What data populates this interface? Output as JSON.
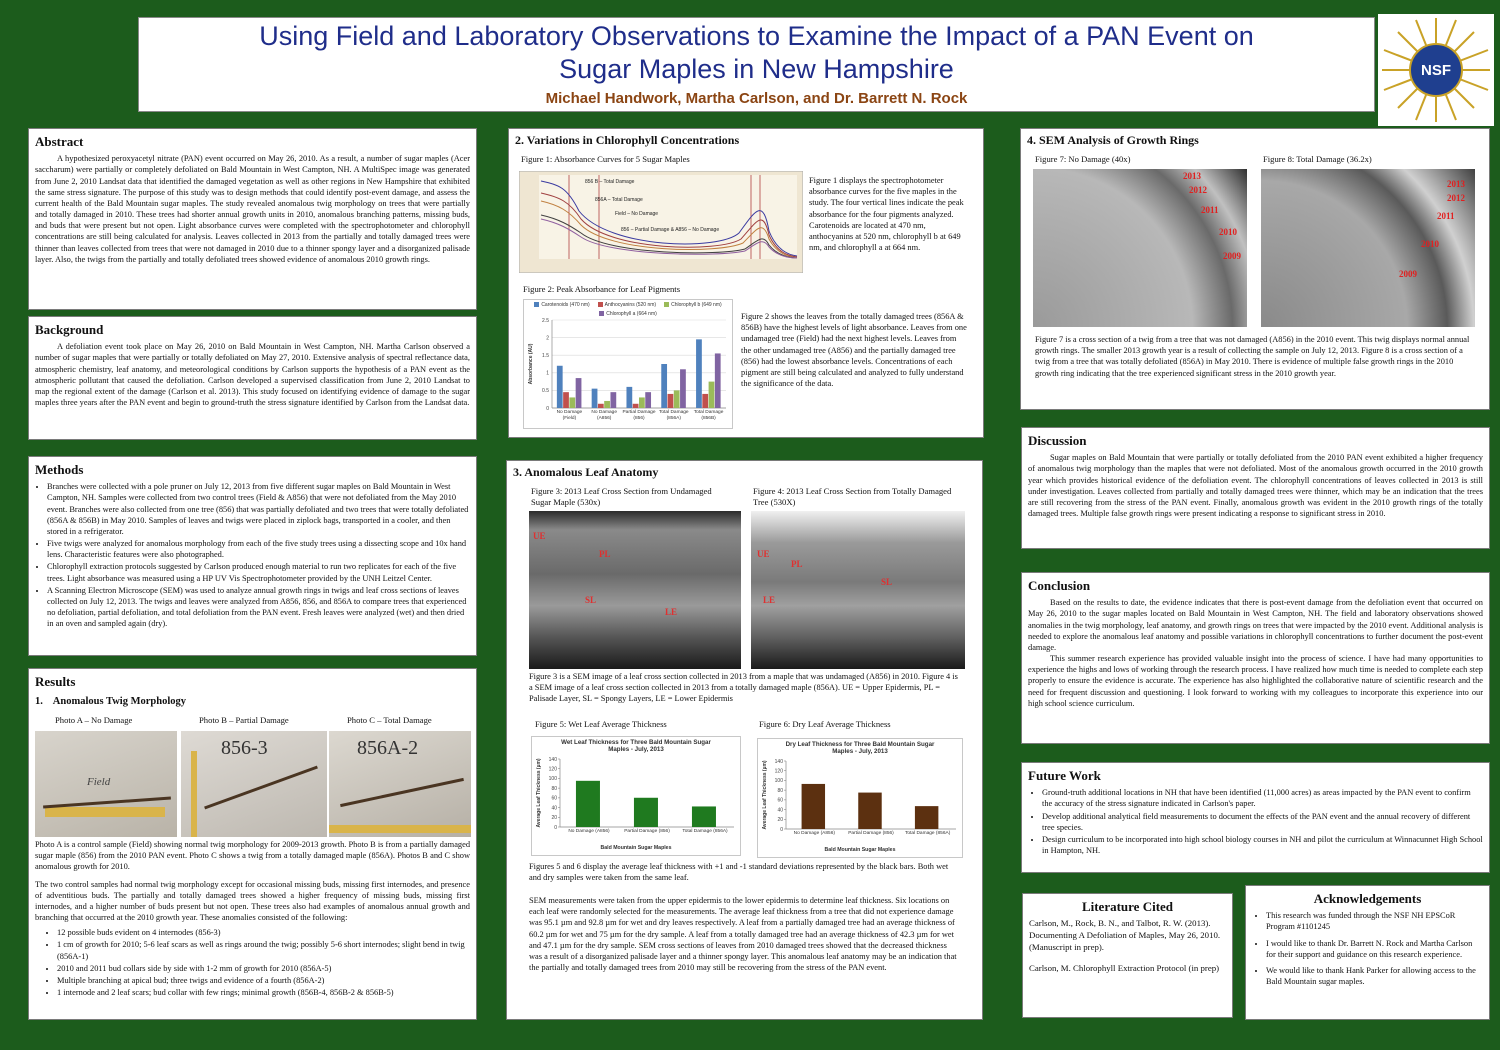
{
  "header": {
    "title": "Using Field and Laboratory Observations to Examine the Impact of a PAN Event on Sugar Maples in New Hampshire",
    "authors": "Michael Handwork, Martha Carlson, and Dr. Barrett N. Rock",
    "logo": "NSF"
  },
  "abstract": {
    "heading": "Abstract",
    "text": "A hypothesized peroxyacetyl nitrate (PAN) event occurred on May 26, 2010.  As a result, a number of sugar maples (Acer saccharum) were partially or completely defoliated on Bald Mountain in West Campton, NH.  A MultiSpec image was generated from June 2, 2010 Landsat data that identified the damaged vegetation as well as other regions in New Hampshire that exhibited the same stress signature.  The purpose of this study was to design methods that could identify post-event damage, and assess the current health of the Bald Mountain sugar maples.  The study revealed anomalous twig morphology on trees that were partially and totally damaged in 2010.  These trees had shorter annual growth units in 2010, anomalous branching patterns, missing buds, and buds that were present but not open.  Light absorbance curves were completed with the spectrophotometer and chlorophyll concentrations are still being calculated for analysis.  Leaves collected in 2013 from the partially and totally damaged trees were thinner than leaves collected from trees that were not damaged in 2010 due to a thinner spongy layer and a disorganized palisade layer.  Also, the twigs from the partially and totally defoliated trees showed evidence of anomalous 2010 growth rings."
  },
  "background": {
    "heading": "Background",
    "text": "A defoliation event took place on May 26, 2010 on Bald Mountain in West Campton, NH.  Martha Carlson observed a number of sugar maples that were partially or totally defoliated on May 27, 2010.  Extensive analysis of spectral reflectance data, atmospheric chemistry, leaf anatomy, and meteorological conditions by Carlson supports the hypothesis of a PAN event as the atmospheric pollutant that caused the defoliation.  Carlson developed a supervised classification from June 2, 2010 Landsat to map the regional extent of the damage (Carlson et al. 2013).  This study focused on identifying evidence of damage to the sugar maples three years after the PAN event and begin to ground-truth the stress signature identified by Carlson from the Landsat data."
  },
  "methods": {
    "heading": "Methods",
    "items": [
      "Branches were collected with a pole pruner on July 12, 2013 from five different sugar maples on Bald Mountain in West Campton, NH.  Samples were collected from two control trees (Field & A856) that were not defoliated from the May 2010 event.  Branches were also collected from one tree (856) that was partially defoliated and two trees that were totally defoliated (856A & 856B) in May 2010.  Samples of leaves and twigs were placed in ziplock bags, transported in a cooler, and then stored in a refrigerator.",
      "Five twigs were analyzed for anomalous morphology from each of the five study trees using a dissecting scope and 10x hand lens.  Characteristic features were also photographed.",
      "Chlorophyll extraction protocols suggested by Carlson produced enough material to run two replicates for each of the five trees.  Light absorbance was measured using a HP UV Vis Spectrophotometer provided by the UNH Leitzel Center.",
      "A Scanning Electron Microscope (SEM) was used to analyze annual growth rings in twigs and leaf cross sections of leaves collected on July 12, 2013.  The twigs and leaves were analyzed from A856, 856, and 856A to compare trees that experienced no defoliation, partial defoliation, and total defoliation from the PAN event.  Fresh leaves were analyzed (wet) and then dried in an oven and sampled again (dry)."
    ]
  },
  "results": {
    "heading": "Results",
    "subheading": "1.    Anomalous Twig Morphology",
    "photos": [
      {
        "caption": "Photo A – No Damage",
        "label": "Field"
      },
      {
        "caption": "Photo B – Partial Damage",
        "label": "856-3"
      },
      {
        "caption": "Photo C – Total Damage",
        "label": "856A-2"
      }
    ],
    "paragraph1": "Photo A is a control sample (Field) showing normal twig morphology for 2009-2013 growth.  Photo B is from a partially damaged sugar maple (856) from the 2010 PAN event.  Photo C shows a twig from a totally damaged maple (856A).  Photos B and C show anomalous growth for 2010.",
    "paragraph2": "The two control samples had normal twig morphology except for occasional missing buds, missing first internodes, and presence of adventitious buds.  The partially and totally damaged trees showed a higher frequency of missing buds, missing first internodes, and a higher number of buds present but not open.  These trees also had examples of anomalous annual growth and branching that occurred at the 2010 growth year.  These anomalies consisted of the following:",
    "items": [
      "12 possible buds evident on 4 internodes (856-3)",
      "1 cm of growth for 2010; 5-6 leaf scars as well as rings around the twig; possibly 5-6 short internodes; slight bend in twig (856A-1)",
      "2010 and 2011 bud collars side by side with 1-2 mm of growth for 2010 (856A-5)",
      "Multiple branching at apical bud; three twigs and evidence of a fourth (856A-2)",
      "1 internode and 2 leaf scars; bud collar with few rings; minimal growth (856B-4, 856B-2 & 856B-5)"
    ]
  },
  "variations": {
    "heading": "2. Variations in Chlorophyll Concentrations",
    "figure1": {
      "caption": "Figure 1: Absorbance Curves for 5 Sugar Maples",
      "curve_labels": [
        "856 B – Total Damage",
        "856A – Total Damage",
        "Field – No Damage",
        "856 – Partial Damage & A856 – No Damage"
      ],
      "text": "Figure 1 displays the spectrophotometer absorbance curves for the five maples in the study.  The four vertical lines indicate the peak absorbance for the four pigments analyzed.  Carotenoids are located at 470 nm, anthocyanins at 520 nm, chlorophyll b at 649 nm, and chlorophyll a at 664 nm."
    },
    "figure2": {
      "caption": "Figure 2: Peak Absorbance for Leaf Pigments",
      "type": "bar",
      "ylabel": "Absorbance (AU)",
      "categories": [
        "No Damage (Field)",
        "No Damage (A856)",
        "Partial Damage (856)",
        "Total Damage (856A)",
        "Total Damage (856B)"
      ],
      "series": [
        {
          "name": "Carotenoids (470 nm)",
          "color": "#4f81bd",
          "values": [
            1.2,
            0.55,
            0.6,
            1.25,
            1.95
          ]
        },
        {
          "name": "Anthocyanins (520 nm)",
          "color": "#c0504d",
          "values": [
            0.45,
            0.12,
            0.12,
            0.4,
            0.4
          ]
        },
        {
          "name": "Chlorophyll b (649 nm)",
          "color": "#9bbb59",
          "values": [
            0.3,
            0.2,
            0.3,
            0.5,
            0.75
          ]
        },
        {
          "name": "Chlorophyll a (664 nm)",
          "color": "#8064a2",
          "values": [
            0.85,
            0.45,
            0.45,
            1.1,
            1.55
          ]
        }
      ],
      "ylim": [
        0,
        2.5
      ],
      "yticks": [
        0,
        0.5,
        1,
        1.5,
        2,
        2.5
      ],
      "grid": true,
      "text": "Figure 2 shows the leaves from the totally damaged trees (856A & 856B) have the highest levels of light absorbance.  Leaves from one undamaged tree (Field) had the next highest levels.  Leaves from the other undamaged tree (A856) and the partially damaged tree (856) had the lowest absorbance levels.  Concentrations of each pigment are still being calculated and analyzed to fully understand the significance of the data."
    }
  },
  "anatomy": {
    "heading": "3. Anomalous Leaf Anatomy",
    "figure3": {
      "caption": "Figure 3: 2013 Leaf Cross Section from Undamaged Sugar Maple (530x)",
      "labels": [
        "UE",
        "PL",
        "SL",
        "LE"
      ]
    },
    "figure4": {
      "caption": "Figure 4: 2013 Leaf Cross Section from Totally Damaged Tree (530X)",
      "labels": [
        "UE",
        "PL",
        "SL",
        "LE"
      ]
    },
    "figures34_text": "Figure 3 is a SEM image of a leaf cross section collected in 2013 from a maple that was undamaged (A856) in 2010.  Figure 4 is a SEM image of a leaf cross section collected in 2013 from a totally damaged maple (856A).  UE = Upper Epidermis, PL = Palisade Layer, SL = Spongy Layers, LE = Lower Epidermis",
    "figure5": {
      "caption": "Figure 5: Wet Leaf Average Thickness",
      "type": "bar",
      "title": "Wet Leaf Thickness for Three Bald Mountain Sugar Maples - July, 2013",
      "ylabel": "Average Leaf Thickness (µm)",
      "xlabel": "Bald Mountain Sugar Maples",
      "categories": [
        "No Damage (A856)",
        "Partial Damage (856)",
        "Total Damage (856A)"
      ],
      "values": [
        95.1,
        60.2,
        42.3
      ],
      "color": "#1f7a1f",
      "ylim": [
        0,
        140
      ],
      "yticks": [
        0,
        20,
        40,
        60,
        80,
        100,
        120,
        140
      ]
    },
    "figure6": {
      "caption": "Figure 6: Dry Leaf Average Thickness",
      "type": "bar",
      "title": "Dry Leaf Thickness for Three Bald Mountain Sugar Maples - July, 2013",
      "ylabel": "Average Leaf Thickness (µm)",
      "xlabel": "Bald Mountain Sugar Maples",
      "categories": [
        "No Damage (A856)",
        "Partial Damage (856)",
        "Total Damage (856A)"
      ],
      "values": [
        92.8,
        75,
        47.1
      ],
      "color": "#5c3010",
      "ylim": [
        0,
        140
      ],
      "yticks": [
        0,
        20,
        40,
        60,
        80,
        100,
        120,
        140
      ]
    },
    "figures56_text": "Figures 5 and 6 display the average leaf thickness with +1 and -1 standard deviations represented by the black bars.  Both wet and dry samples were taken from the same leaf.",
    "sem_text": "SEM measurements were taken from the upper epidermis to the lower epidermis to determine leaf thickness.  Six locations on each leaf were randomly selected for the measurements.  The average leaf thickness from a tree that did not experience damage was 95.1 µm and 92.8 µm for wet and dry leaves respectively.  A leaf from a partially damaged tree had an average thickness of 60.2 µm for wet and 75 µm for the dry sample.  A leaf from a totally damaged tree had an average thickness of 42.3 µm for wet and 47.1 µm for the dry sample.  SEM cross sections of leaves from 2010 damaged trees showed that the decreased thickness was a result of a disorganized palisade layer and a thinner spongy layer.  This anomalous leaf anatomy may be an indication that the partially and totally damaged trees from 2010 may still be recovering from the stress of the PAN event."
  },
  "growth_rings": {
    "heading": "4. SEM Analysis of Growth Rings",
    "figure7": {
      "caption": "Figure 7: No Damage (40x)",
      "labels": [
        "2013",
        "2012",
        "2011",
        "2010",
        "2009"
      ]
    },
    "figure8": {
      "caption": "Figure 8: Total Damage (36.2x)",
      "labels": [
        "2013",
        "2012",
        "2011",
        "2010",
        "2009"
      ]
    },
    "text": "Figure 7 is a cross section of a twig from a tree that was not damaged (A856) in the 2010 event.  This twig displays normal annual growth rings.  The smaller 2013 growth year is a result of collecting the sample on July 12, 2013.  Figure 8 is a cross section of a twig from a tree that was totally defoliated (856A) in May 2010.  There is evidence of multiple false growth rings in the 2010 growth ring indicating that the tree experienced significant stress in the 2010 growth year."
  },
  "discussion": {
    "heading": "Discussion",
    "text": "Sugar maples on Bald Mountain that were partially or totally defoliated from the 2010 PAN event exhibited a higher frequency of anomalous twig morphology than the maples that were not defoliated.  Most of the anomalous growth occurred in the 2010 growth year which provides historical evidence of the defoliation event.  The chlorophyll concentrations of leaves collected in 2013 is still under investigation.  Leaves collected from partially and totally damaged trees were thinner, which may be an indication that the trees are still recovering from the stress of the PAN event.  Finally, anomalous growth was evident in the 2010 growth rings of the totally damaged trees.  Multiple false growth rings were present indicating a response to significant stress in 2010."
  },
  "conclusion": {
    "heading": "Conclusion",
    "paragraphs": [
      "Based on the results to date, the evidence indicates that there is post-event damage from the defoliation event that occurred on May 26, 2010 to the sugar maples located on Bald Mountain in West Campton, NH.  The field and laboratory observations showed anomalies in the twig morphology, leaf anatomy, and growth rings on trees that were impacted by the 2010 event.  Additional analysis is needed to explore the anomalous leaf anatomy and possible variations in chlorophyll concentrations to further document the post-event damage.",
      "This summer research experience has provided valuable insight into the process of science.  I have had many opportunities to experience the highs and lows of working through the research process.  I have realized how much time is needed to complete each step properly to ensure the evidence is accurate.  The experience has also highlighted the collaborative nature of scientific research and the need for frequent discussion and questioning.  I look forward to working with my colleagues to incorporate this experience into our high school science curriculum."
    ]
  },
  "future_work": {
    "heading": "Future Work",
    "items": [
      "Ground-truth additional locations in NH that have been identified (11,000 acres) as areas impacted by the PAN event to confirm the accuracy of the stress signature indicated in Carlson's paper.",
      "Develop additional analytical field measurements to document the effects of the PAN event and the annual recovery of different tree species.",
      "Design curriculum to be incorporated into high school biology courses in NH and pilot the curriculum at Winnacunnet High School in Hampton, NH."
    ]
  },
  "literature": {
    "heading": "Literature Cited",
    "entries": [
      "Carlson, M., Rock, B. N., and Talbot, R. W. (2013).  Documenting A Defoliation of Maples, May 26, 2010.  (Manuscript in prep).",
      "Carlson, M.  Chlorophyll Extraction Protocol (in prep)"
    ]
  },
  "acknowledgements": {
    "heading": "Acknowledgements",
    "items": [
      "This research was funded through the NSF NH EPSCoR Program #1101245",
      "I would like to thank Dr. Barrett N. Rock and Martha Carlson for their support and guidance on this research experience.",
      "We would like to thank Hank Parker for allowing access to the Bald Mountain sugar maples."
    ]
  }
}
